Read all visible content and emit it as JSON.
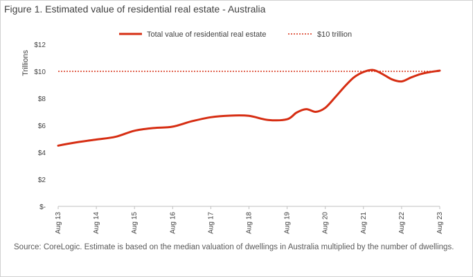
{
  "title": "Figure 1. Estimated value of residential real estate - Australia",
  "source": "Source: CoreLogic. Estimate is based on the median valuation of dwellings in Australia multiplied by the number of dwellings.",
  "colors": {
    "series": "#d62d12",
    "reference": "#d62d12",
    "axis": "#bfbfbf"
  },
  "chart_data": {
    "type": "line",
    "ylabel": "Trillions",
    "ylim": [
      0,
      12
    ],
    "yticks": [
      {
        "value": 0,
        "label": "$-"
      },
      {
        "value": 2,
        "label": "$2"
      },
      {
        "value": 4,
        "label": "$4"
      },
      {
        "value": 6,
        "label": "$6"
      },
      {
        "value": 8,
        "label": "$8"
      },
      {
        "value": 10,
        "label": "$10"
      },
      {
        "value": 12,
        "label": "$12"
      }
    ],
    "xticks": [
      "Aug 13",
      "Aug 14",
      "Aug 15",
      "Aug 16",
      "Aug 17",
      "Aug 18",
      "Aug 19",
      "Aug 20",
      "Aug 21",
      "Aug 22",
      "Aug 23"
    ],
    "grid": false,
    "legend": "top-center",
    "series": [
      {
        "name": "Total value of residential real estate",
        "style": "solid",
        "x": [
          "2013-08",
          "2014-02",
          "2014-08",
          "2015-02",
          "2015-08",
          "2016-02",
          "2016-08",
          "2017-02",
          "2017-08",
          "2018-02",
          "2018-08",
          "2019-02",
          "2019-08",
          "2019-11",
          "2020-02",
          "2020-05",
          "2020-08",
          "2020-11",
          "2021-02",
          "2021-05",
          "2021-08",
          "2021-11",
          "2022-02",
          "2022-05",
          "2022-08",
          "2022-11",
          "2023-02",
          "2023-05",
          "2023-08"
        ],
        "values": [
          4.5,
          4.75,
          4.95,
          5.15,
          5.6,
          5.8,
          5.9,
          6.3,
          6.6,
          6.72,
          6.7,
          6.4,
          6.45,
          6.95,
          7.2,
          7.0,
          7.3,
          8.05,
          8.85,
          9.55,
          9.95,
          10.1,
          9.8,
          9.4,
          9.25,
          9.55,
          9.8,
          9.95,
          10.05
        ]
      },
      {
        "name": "$10 trillion",
        "style": "dotted",
        "value": 10
      }
    ]
  }
}
